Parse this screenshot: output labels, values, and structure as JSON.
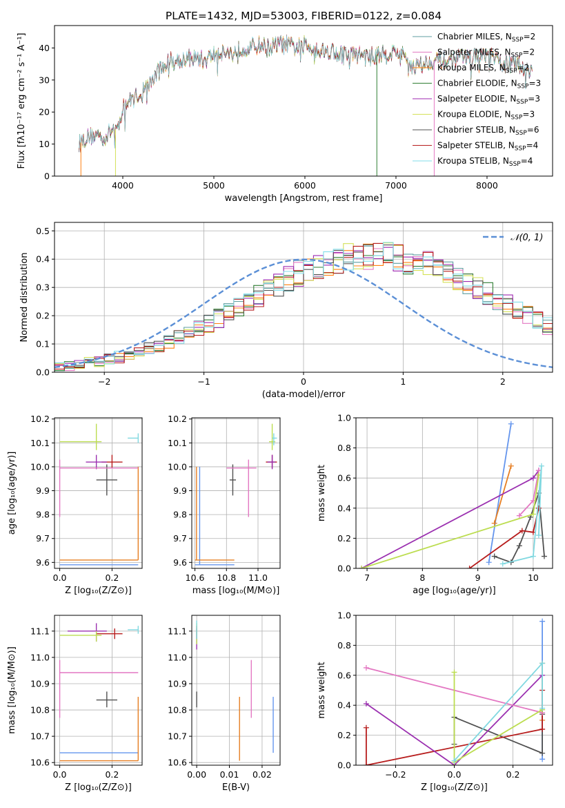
{
  "figure_title": "PLATE=1432, MJD=53003, FIBERID=0122, z=0.084",
  "colors": {
    "series": [
      "#5f9ea0",
      "#e377c2",
      "#ff7f0e",
      "#2e7d32",
      "#9c27b0",
      "#d4e157",
      "#505050",
      "#b71c1c",
      "#80deea"
    ],
    "solutions": [
      "#6495ed",
      "#e67e22",
      "#505050",
      "#b71c1c",
      "#9b30b0",
      "#e377c2",
      "#bcdd50",
      "#80d8e0"
    ],
    "normal_curve": "#5b8fd6",
    "grid": "#b0b0b0"
  },
  "chart_data": [
    {
      "name": "spectrum",
      "type": "line",
      "xlabel": "wavelength [Angstrom, rest frame]",
      "ylabel": "Flux [fλ10⁻¹⁷ erg cm⁻² s⁻¹ A⁻¹]",
      "xlim": [
        3250,
        8720
      ],
      "ylim": [
        0,
        47
      ],
      "xticks": [
        "4000",
        "5000",
        "6000",
        "7000",
        "8000"
      ],
      "yticks": [
        "0",
        "10",
        "20",
        "30",
        "40"
      ],
      "legend_location": "top-right",
      "envelope": [
        [
          3520,
          10
        ],
        [
          3600,
          12
        ],
        [
          3700,
          13
        ],
        [
          3800,
          12
        ],
        [
          3900,
          15
        ],
        [
          3950,
          14
        ],
        [
          4000,
          22
        ],
        [
          4100,
          24
        ],
        [
          4200,
          26
        ],
        [
          4300,
          29
        ],
        [
          4400,
          33
        ],
        [
          4500,
          36
        ],
        [
          4600,
          36
        ],
        [
          4700,
          37
        ],
        [
          4800,
          37
        ],
        [
          4900,
          36
        ],
        [
          5000,
          38
        ],
        [
          5100,
          39
        ],
        [
          5200,
          38
        ],
        [
          5300,
          40
        ],
        [
          5400,
          40
        ],
        [
          5500,
          41
        ],
        [
          5600,
          40
        ],
        [
          5700,
          41
        ],
        [
          5800,
          41
        ],
        [
          5900,
          40
        ],
        [
          6000,
          41
        ],
        [
          6100,
          40
        ],
        [
          6200,
          39
        ],
        [
          6300,
          39
        ],
        [
          6400,
          38
        ],
        [
          6500,
          38
        ],
        [
          6600,
          38
        ],
        [
          6700,
          37
        ],
        [
          6800,
          38
        ],
        [
          6900,
          38
        ],
        [
          7000,
          39
        ],
        [
          7100,
          37
        ],
        [
          7200,
          34
        ],
        [
          7300,
          35
        ],
        [
          7400,
          36
        ],
        [
          7500,
          36
        ],
        [
          7600,
          36
        ],
        [
          7700,
          37
        ],
        [
          7800,
          37
        ],
        [
          7900,
          37
        ],
        [
          8000,
          38
        ],
        [
          8100,
          36
        ],
        [
          8200,
          35
        ],
        [
          8300,
          35
        ],
        [
          8400,
          34
        ],
        [
          8500,
          33
        ]
      ],
      "series": [
        {
          "name": "Chabrier MILES, N",
          "sub": "SSP",
          "tail": "=2"
        },
        {
          "name": "Salpeter MILES, N",
          "sub": "SSP",
          "tail": "=2"
        },
        {
          "name": "Kroupa MILES, N",
          "sub": "SSP",
          "tail": "=2"
        },
        {
          "name": "Chabrier ELODIE, N",
          "sub": "SSP",
          "tail": "=3"
        },
        {
          "name": "Salpeter ELODIE, N",
          "sub": "SSP",
          "tail": "=3"
        },
        {
          "name": "Kroupa ELODIE, N",
          "sub": "SSP",
          "tail": "=3"
        },
        {
          "name": "Chabrier STELIB, N",
          "sub": "SSP",
          "tail": "=6"
        },
        {
          "name": "Salpeter STELIB, N",
          "sub": "SSP",
          "tail": "=4"
        },
        {
          "name": "Kroupa STELIB, N",
          "sub": "SSP",
          "tail": "=4"
        }
      ]
    },
    {
      "name": "residual-histogram",
      "type": "histogram",
      "xlabel": "(data-model)/error",
      "ylabel": "Normed distribution",
      "xlim": [
        -2.5,
        2.5
      ],
      "ylim": [
        0,
        0.53
      ],
      "xticks": [
        "−2",
        "−1",
        "0",
        "1",
        "2"
      ],
      "xtick_values": [
        -2,
        -1,
        0,
        1,
        2
      ],
      "yticks": [
        "0.0",
        "0.1",
        "0.2",
        "0.3",
        "0.4",
        "0.5"
      ],
      "bin_edges_start": -2.5,
      "bin_width": 0.1,
      "base_profile": [
        0.021,
        0.024,
        0.028,
        0.034,
        0.04,
        0.046,
        0.053,
        0.062,
        0.072,
        0.083,
        0.095,
        0.108,
        0.122,
        0.138,
        0.155,
        0.172,
        0.19,
        0.21,
        0.23,
        0.25,
        0.27,
        0.29,
        0.31,
        0.33,
        0.35,
        0.365,
        0.38,
        0.39,
        0.4,
        0.405,
        0.41,
        0.412,
        0.412,
        0.41,
        0.405,
        0.398,
        0.39,
        0.378,
        0.365,
        0.35,
        0.333,
        0.316,
        0.298,
        0.28,
        0.26,
        0.24,
        0.22,
        0.2,
        0.182,
        0.163,
        0.145,
        0.128,
        0.112,
        0.097,
        0.083,
        0.071,
        0.06,
        0.05,
        0.042,
        0.035,
        0.029,
        0.025,
        0.022
      ],
      "normal_curve_label": "𝒩(0, 1)",
      "legend_location": "top-right"
    },
    {
      "name": "Z-vs-age",
      "type": "scatter",
      "xlabel": "Z [log₁₀(Z/Z⊙)]",
      "ylabel": "age  [log₁₀(age/yr)]",
      "xlim": [
        -0.02,
        0.315
      ],
      "ylim": [
        9.575,
        10.205
      ],
      "xticks": [
        "0.0",
        "0.2"
      ],
      "xtick_values": [
        0,
        0.2
      ],
      "yticks": [
        "9.6",
        "9.7",
        "9.8",
        "9.9",
        "10.0",
        "10.1",
        "10.2"
      ],
      "ytick_values": [
        9.6,
        9.7,
        9.8,
        9.9,
        10.0,
        10.1,
        10.2
      ],
      "points": [
        {
          "x": 0.3,
          "y": 9.59,
          "xlo": 0.0,
          "xhi": 0.3,
          "ylo": 9.59,
          "yhi": 9.59
        },
        {
          "x": 0.3,
          "y": 9.61,
          "xlo": 0.0,
          "xhi": 0.3,
          "ylo": 9.61,
          "yhi": 10.0
        },
        {
          "x": 0.18,
          "y": 9.945,
          "xlo": 0.14,
          "xhi": 0.22,
          "ylo": 9.88,
          "yhi": 10.01
        },
        {
          "x": 0.2,
          "y": 10.02,
          "xlo": 0.16,
          "xhi": 0.24,
          "ylo": 9.995,
          "yhi": 10.05
        },
        {
          "x": 0.14,
          "y": 10.02,
          "xlo": 0.1,
          "xhi": 0.18,
          "ylo": 9.99,
          "yhi": 10.05
        },
        {
          "x": 0.0,
          "y": 9.995,
          "xlo": 0.0,
          "xhi": 0.3,
          "ylo": 9.79,
          "yhi": 10.03
        },
        {
          "x": 0.14,
          "y": 10.105,
          "xlo": 0.0,
          "xhi": 0.16,
          "ylo": 10.07,
          "yhi": 10.18
        },
        {
          "x": 0.3,
          "y": 10.12,
          "xlo": 0.26,
          "xhi": 0.3,
          "ylo": 10.1,
          "yhi": 10.14
        }
      ]
    },
    {
      "name": "mass-vs-age",
      "type": "scatter",
      "xlabel": "mass [log₁₀(M/M⊙)]",
      "ylabel": "",
      "xlim": [
        10.58,
        11.14
      ],
      "ylim": [
        9.575,
        10.205
      ],
      "xticks": [
        "10.6",
        "10.8",
        "11.0"
      ],
      "xtick_values": [
        10.6,
        10.8,
        11.0
      ],
      "yticks": [
        "9.6",
        "9.7",
        "9.8",
        "9.9",
        "10.0",
        "10.1",
        "10.2"
      ],
      "ytick_values": [
        9.6,
        9.7,
        9.8,
        9.9,
        10.0,
        10.1,
        10.2
      ],
      "points": [
        {
          "x": 10.63,
          "y": 9.59,
          "xlo": 10.6,
          "xhi": 10.85,
          "ylo": 9.59,
          "yhi": 10.0
        },
        {
          "x": 10.61,
          "y": 9.61,
          "xlo": 10.6,
          "xhi": 10.85,
          "ylo": 9.61,
          "yhi": 10.0
        },
        {
          "x": 10.84,
          "y": 9.945,
          "xlo": 10.82,
          "xhi": 10.86,
          "ylo": 9.88,
          "yhi": 10.01
        },
        {
          "x": 11.09,
          "y": 10.02,
          "xlo": 11.05,
          "xhi": 11.12,
          "ylo": 9.995,
          "yhi": 10.05
        },
        {
          "x": 11.09,
          "y": 10.02,
          "xlo": 11.06,
          "xhi": 11.11,
          "ylo": 9.99,
          "yhi": 10.05
        },
        {
          "x": 10.94,
          "y": 9.995,
          "xlo": 10.8,
          "xhi": 10.99,
          "ylo": 9.79,
          "yhi": 10.03
        },
        {
          "x": 11.09,
          "y": 10.105,
          "xlo": 11.07,
          "xhi": 11.11,
          "ylo": 10.07,
          "yhi": 10.18
        },
        {
          "x": 11.1,
          "y": 10.12,
          "xlo": 11.09,
          "xhi": 11.12,
          "ylo": 10.09,
          "yhi": 10.14
        }
      ]
    },
    {
      "name": "age-vs-mass-weight",
      "type": "line",
      "xlabel": "age  [log₁₀(age/yr)]",
      "ylabel": "mass weight",
      "xlim": [
        6.8,
        10.35
      ],
      "ylim": [
        0,
        1
      ],
      "xticks": [
        "7",
        "8",
        "9",
        "10"
      ],
      "xtick_values": [
        7,
        8,
        9,
        10
      ],
      "yticks": [
        "0.0",
        "0.2",
        "0.4",
        "0.6",
        "0.8",
        "1.0"
      ],
      "ytick_values": [
        0,
        0.2,
        0.4,
        0.6,
        0.8,
        1.0
      ],
      "series": [
        {
          "points": [
            [
              9.2,
              0.04
            ],
            [
              9.6,
              0.96
            ]
          ]
        },
        {
          "points": [
            [
              9.3,
              0.3
            ],
            [
              9.6,
              0.68
            ]
          ]
        },
        {
          "points": [
            [
              9.3,
              0.08
            ],
            [
              9.6,
              0.04
            ],
            [
              9.75,
              0.15
            ],
            [
              9.95,
              0.34
            ],
            [
              10.1,
              0.5
            ],
            [
              10.2,
              0.08
            ]
          ]
        },
        {
          "points": [
            [
              8.85,
              0.0
            ],
            [
              9.8,
              0.25
            ],
            [
              10.0,
              0.24
            ],
            [
              10.1,
              0.4
            ]
          ]
        },
        {
          "points": [
            [
              6.9,
              0.0
            ],
            [
              10.0,
              0.6
            ],
            [
              10.1,
              0.65
            ]
          ]
        },
        {
          "points": [
            [
              9.75,
              0.35
            ],
            [
              10.0,
              0.45
            ],
            [
              10.1,
              0.65
            ]
          ]
        },
        {
          "points": [
            [
              6.9,
              0.0
            ],
            [
              10.0,
              0.36
            ],
            [
              10.1,
              0.62
            ]
          ]
        },
        {
          "points": [
            [
              9.45,
              0.03
            ],
            [
              10.0,
              0.08
            ],
            [
              10.15,
              0.68
            ],
            [
              10.1,
              0.22
            ]
          ]
        }
      ]
    },
    {
      "name": "Z-vs-mass",
      "type": "scatter",
      "xlabel": "Z [log₁₀(Z/Z⊙)]",
      "ylabel": "mass [log₁₀(M/M⊙)]",
      "xlim": [
        -0.02,
        0.315
      ],
      "ylim": [
        10.59,
        11.16
      ],
      "xticks": [
        "0.0",
        "0.2"
      ],
      "xtick_values": [
        0,
        0.2
      ],
      "yticks": [
        "10.6",
        "10.7",
        "10.8",
        "10.9",
        "11.0",
        "11.1"
      ],
      "ytick_values": [
        10.6,
        10.7,
        10.8,
        10.9,
        11.0,
        11.1
      ],
      "points": [
        {
          "x": 0.3,
          "y": 10.637,
          "xlo": 0.0,
          "xhi": 0.3,
          "ylo": 10.637,
          "yhi": 10.637
        },
        {
          "x": 0.3,
          "y": 10.607,
          "xlo": 0.0,
          "xhi": 0.3,
          "ylo": 10.607,
          "yhi": 10.85
        },
        {
          "x": 0.18,
          "y": 10.838,
          "xlo": 0.14,
          "xhi": 0.22,
          "ylo": 10.81,
          "yhi": 10.87
        },
        {
          "x": 0.21,
          "y": 11.09,
          "xlo": 0.14,
          "xhi": 0.24,
          "ylo": 11.07,
          "yhi": 11.11
        },
        {
          "x": 0.14,
          "y": 11.1,
          "xlo": 0.03,
          "xhi": 0.18,
          "ylo": 11.06,
          "yhi": 11.13
        },
        {
          "x": 0.0,
          "y": 10.942,
          "xlo": 0.0,
          "xhi": 0.3,
          "ylo": 10.77,
          "yhi": 10.99
        },
        {
          "x": 0.14,
          "y": 11.084,
          "xlo": 0.0,
          "xhi": 0.16,
          "ylo": 11.06,
          "yhi": 11.1
        },
        {
          "x": 0.3,
          "y": 11.105,
          "xlo": 0.26,
          "xhi": 0.3,
          "ylo": 11.09,
          "yhi": 11.12
        }
      ]
    },
    {
      "name": "EBV-vs-mass",
      "type": "scatter",
      "xlabel": "E(B-V)",
      "ylabel": "",
      "xlim": [
        -0.0015,
        0.0255
      ],
      "ylim": [
        10.59,
        11.16
      ],
      "xticks": [
        "0.00",
        "0.01",
        "0.02"
      ],
      "xtick_values": [
        0,
        0.01,
        0.02
      ],
      "yticks": [
        "10.6",
        "10.7",
        "10.8",
        "10.9",
        "11.0",
        "11.1"
      ],
      "ytick_values": [
        10.6,
        10.7,
        10.8,
        10.9,
        11.0,
        11.1
      ],
      "points": [
        {
          "x": 0.0234,
          "y": 10.74,
          "xlo": 0.0234,
          "xhi": 0.0234,
          "ylo": 10.637,
          "yhi": 10.85
        },
        {
          "x": 0.0131,
          "y": 10.72,
          "xlo": 0.0131,
          "xhi": 0.0131,
          "ylo": 10.607,
          "yhi": 10.85
        },
        {
          "x": 0.0,
          "y": 10.838,
          "xlo": 0.0,
          "xhi": 0.0,
          "ylo": 10.81,
          "yhi": 10.87
        },
        {
          "x": 0.0,
          "y": 11.09,
          "xlo": 0.0,
          "xhi": 0.0,
          "ylo": 11.07,
          "yhi": 11.12
        },
        {
          "x": 0.0,
          "y": 11.1,
          "xlo": 0.0,
          "xhi": 0.0,
          "ylo": 11.03,
          "yhi": 11.11
        },
        {
          "x": 0.0167,
          "y": 10.88,
          "xlo": 0.0167,
          "xhi": 0.0167,
          "ylo": 10.77,
          "yhi": 10.99
        },
        {
          "x": 0.0,
          "y": 11.09,
          "xlo": 0.0,
          "xhi": 0.0,
          "ylo": 11.05,
          "yhi": 11.13
        },
        {
          "x": 0.0,
          "y": 11.1,
          "xlo": 0.0,
          "xhi": 0.0,
          "ylo": 11.07,
          "yhi": 11.14
        }
      ]
    },
    {
      "name": "Z-vs-mass-weight",
      "type": "line",
      "xlabel": "Z [log₁₀(Z/Z⊙)]",
      "ylabel": "mass weight",
      "xlim": [
        -0.335,
        0.335
      ],
      "ylim": [
        0,
        1
      ],
      "xticks": [
        "−0.2",
        "0.0",
        "0.2"
      ],
      "xtick_values": [
        -0.2,
        0,
        0.2
      ],
      "yticks": [
        "0.0",
        "0.2",
        "0.4",
        "0.6",
        "0.8",
        "1.0"
      ],
      "ytick_values": [
        0,
        0.2,
        0.4,
        0.6,
        0.8,
        1.0
      ],
      "series": [
        {
          "points": [
            [
              0.3,
              0.04
            ],
            [
              0.3,
              0.96
            ]
          ]
        },
        {
          "points": [
            [
              0.3,
              0.3
            ],
            [
              0.3,
              0.68
            ]
          ]
        },
        {
          "points": [
            [
              0.0,
              0.14
            ],
            [
              0.0,
              0.32
            ],
            [
              0.3,
              0.08
            ],
            [
              0.3,
              0.34
            ]
          ]
        },
        {
          "points": [
            [
              -0.3,
              0.25
            ],
            [
              -0.3,
              0.0
            ],
            [
              0.3,
              0.24
            ],
            [
              0.3,
              0.5
            ]
          ]
        },
        {
          "points": [
            [
              -0.3,
              0.41
            ],
            [
              0.0,
              0.0
            ],
            [
              0.3,
              0.6
            ]
          ]
        },
        {
          "points": [
            [
              -0.3,
              0.65
            ],
            [
              0.3,
              0.35
            ]
          ]
        },
        {
          "points": [
            [
              0.0,
              0.62
            ],
            [
              0.0,
              0.02
            ],
            [
              0.3,
              0.37
            ]
          ]
        },
        {
          "points": [
            [
              0.0,
              0.03
            ],
            [
              0.3,
              0.68
            ],
            [
              0.3,
              0.38
            ]
          ]
        }
      ]
    }
  ]
}
